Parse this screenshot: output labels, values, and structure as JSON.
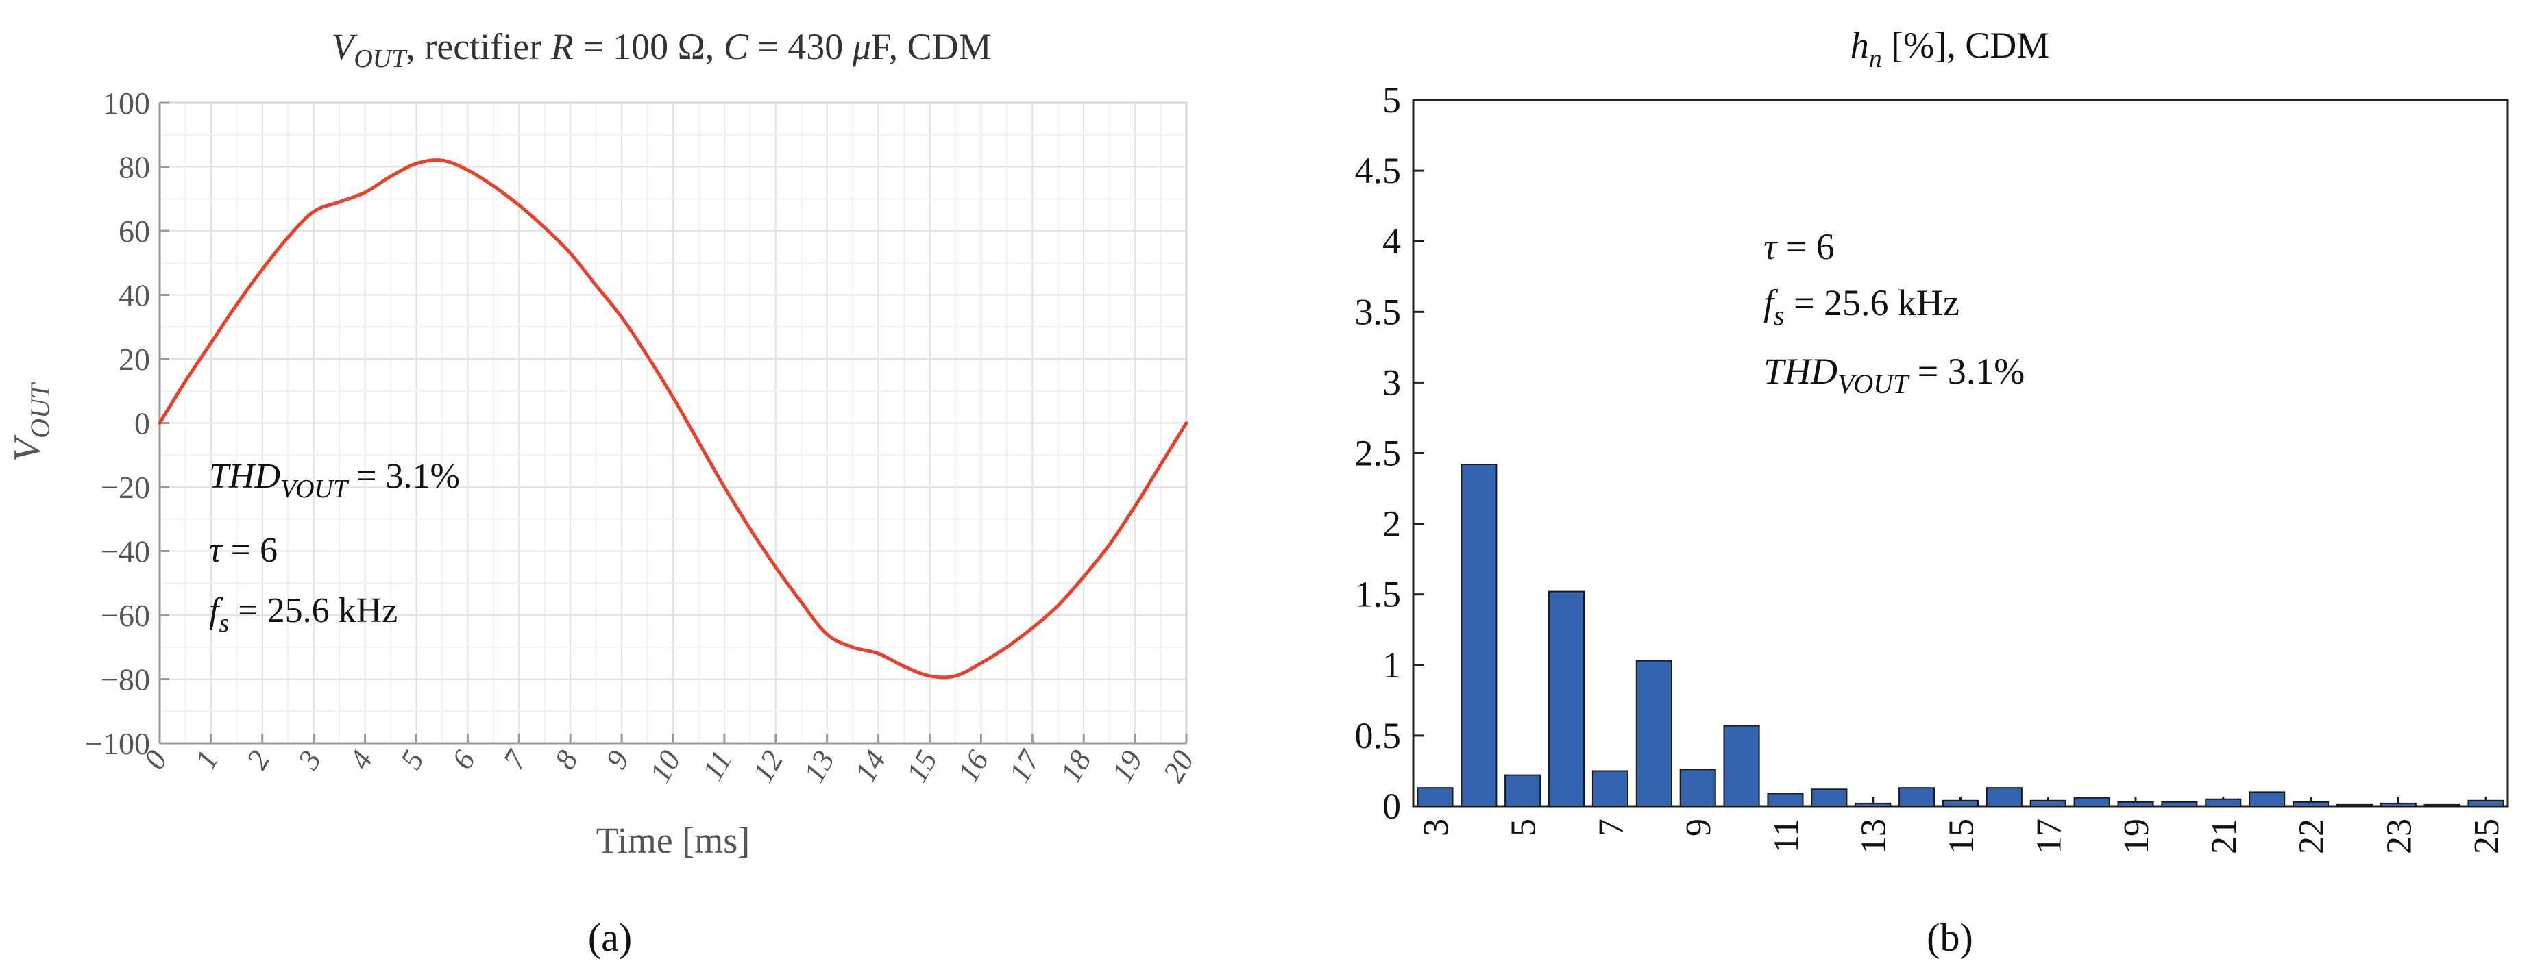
{
  "chart_data": [
    {
      "type": "line",
      "title": {
        "v": "V",
        "v_sub": "OUT",
        "text": ", rectifier ",
        "r": "R",
        "r_val": " = 100 Ω, ",
        "c": "C",
        "c_val": " = 430 ",
        "mu": "μ",
        "unit": "F, CDM"
      },
      "xlabel": "Time [ms]",
      "ylabel": {
        "main": "V",
        "sub": "OUT"
      },
      "xlim": [
        0,
        20
      ],
      "ylim": [
        -100,
        100
      ],
      "xticks": [
        "0",
        "1",
        "2",
        "3",
        "4",
        "5",
        "6",
        "7",
        "8",
        "9",
        "10",
        "11",
        "12",
        "13",
        "14",
        "15",
        "16",
        "17",
        "18",
        "19",
        "20"
      ],
      "yticks": [
        "100",
        "80",
        "60",
        "40",
        "20",
        "0",
        "−20",
        "−40",
        "−60",
        "−80",
        "−100"
      ],
      "grid": true,
      "line_color": "#e8402a",
      "series": [
        {
          "x": [
            0,
            0.5,
            1,
            1.5,
            2,
            2.5,
            3,
            3.5,
            4,
            4.5,
            5,
            5.5,
            6,
            6.5,
            7,
            7.5,
            8,
            8.5,
            9,
            9.5,
            10,
            10.5,
            11,
            11.5,
            12,
            12.5,
            13,
            13.5,
            14,
            14.5,
            15,
            15.5,
            16,
            16.5,
            17,
            17.5,
            18,
            18.5,
            19,
            19.5,
            20
          ],
          "y": [
            0,
            13,
            25,
            37,
            48,
            58,
            66,
            69,
            72,
            77,
            81,
            82,
            79,
            74,
            68,
            61,
            53,
            43,
            33,
            21,
            8,
            -6,
            -20,
            -33,
            -45,
            -56,
            -66,
            -70,
            -72,
            -76,
            -79,
            -79,
            -75,
            -70,
            -64,
            -57,
            -48,
            -38,
            -26,
            -13,
            0
          ]
        }
      ],
      "annotations": [
        {
          "main": "THD",
          "sub": "VOUT",
          "value": " = 3.1%"
        },
        {
          "main": "τ",
          "sub": "",
          "value": " = 6"
        },
        {
          "main": "f",
          "sub": "s",
          "value": " = 25.6 kHz"
        }
      ],
      "panel_label": "(a)"
    },
    {
      "type": "bar",
      "title": {
        "h": "h",
        "h_sub": "n",
        "text": " [%], CDM"
      },
      "ylim": [
        0,
        5
      ],
      "yticks": [
        "5",
        "4.5",
        "4",
        "3.5",
        "3",
        "2.5",
        "2",
        "1.5",
        "1",
        "0.5",
        "0"
      ],
      "xtick_labels": [
        {
          "index": 1,
          "label": "3"
        },
        {
          "index": 3,
          "label": "5"
        },
        {
          "index": 5,
          "label": "7"
        },
        {
          "index": 7,
          "label": "9"
        },
        {
          "index": 9,
          "label": "11"
        },
        {
          "index": 11,
          "label": "13"
        },
        {
          "index": 13,
          "label": "15"
        },
        {
          "index": 15,
          "label": "17"
        },
        {
          "index": 17,
          "label": "19"
        },
        {
          "index": 19,
          "label": "21"
        },
        {
          "index": 21,
          "label": "22"
        },
        {
          "index": 23,
          "label": "23"
        },
        {
          "index": 25,
          "label": "25"
        }
      ],
      "values": [
        0.13,
        2.42,
        0.22,
        1.52,
        0.25,
        1.03,
        0.26,
        0.57,
        0.09,
        0.12,
        0.02,
        0.13,
        0.04,
        0.13,
        0.04,
        0.06,
        0.03,
        0.03,
        0.05,
        0.1,
        0.03,
        0.01,
        0.02,
        0.01,
        0.04
      ],
      "bar_color": "#3464b0",
      "annotations": [
        {
          "main": "τ",
          "sub": "",
          "value": " = 6"
        },
        {
          "main": "f",
          "sub": "s",
          "value": " = 25.6 kHz"
        },
        {
          "main": "THD",
          "sub": "VOUT",
          "value": " = 3.1%"
        }
      ],
      "panel_label": "(b)"
    }
  ]
}
